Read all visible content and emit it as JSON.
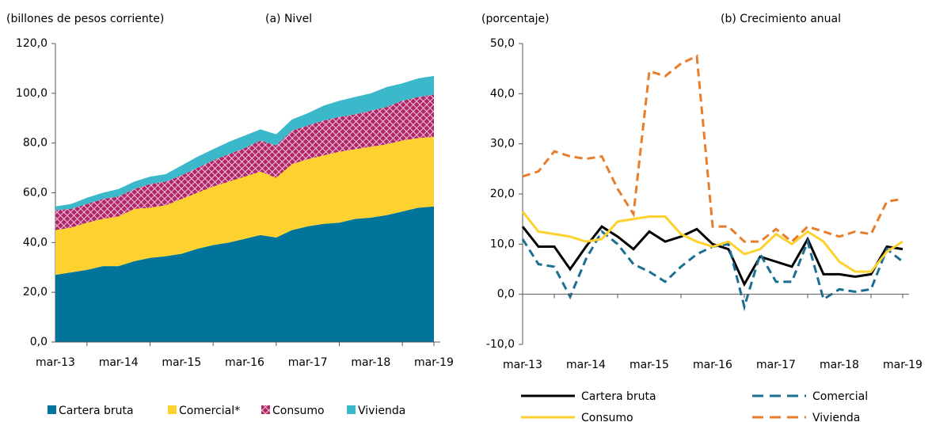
{
  "chart_data": [
    {
      "type": "stacked_area",
      "title": "(a) Nivel",
      "y_label": "(billones de pesos corriente)",
      "categories": [
        "mar-13",
        null,
        null,
        null,
        "mar-14",
        null,
        null,
        null,
        "mar-15",
        null,
        null,
        null,
        "mar-16",
        null,
        null,
        null,
        "mar-17",
        null,
        null,
        null,
        "mar-18",
        null,
        null,
        null,
        "mar-19"
      ],
      "ylim": [
        0,
        120
      ],
      "yticks": [
        {
          "value": 0,
          "label": "0,0"
        },
        {
          "value": 20,
          "label": "20,0"
        },
        {
          "value": 40,
          "label": "40,0"
        },
        {
          "value": 60,
          "label": "60,0"
        },
        {
          "value": 80,
          "label": "80,0"
        },
        {
          "value": 100,
          "label": "100,0"
        },
        {
          "value": 120,
          "label": "120,0"
        }
      ],
      "series": [
        {
          "name": "Cartera bruta",
          "color": "#00749a",
          "values": [
            27,
            28,
            29,
            30.5,
            30.5,
            32.5,
            33.8,
            34.5,
            35.5,
            37.5,
            39,
            40,
            41.5,
            43,
            42,
            45,
            46.5,
            47.5,
            48,
            49.5,
            50,
            51,
            52.5,
            54,
            54.5
          ]
        },
        {
          "name": "Comercial*",
          "color": "#fdd12f",
          "values": [
            18,
            18,
            19,
            19,
            20,
            21,
            20.2,
            20.5,
            22,
            22.5,
            23.5,
            24.5,
            25,
            25.5,
            24,
            26.5,
            27,
            27.5,
            28.5,
            28,
            28.5,
            28.5,
            28.5,
            28,
            28
          ]
        },
        {
          "name": "Consumo",
          "color": "#b1286a",
          "pattern": "crosshatch",
          "values": [
            8,
            7.5,
            7.5,
            8,
            8,
            8,
            9.5,
            9.5,
            9.5,
            10,
            10.5,
            11,
            11.5,
            12.5,
            13,
            13.5,
            13.5,
            14,
            14,
            14,
            14.5,
            15,
            16,
            16.5,
            17
          ]
        },
        {
          "name": "Vivienda",
          "color": "#3bb8c9",
          "values": [
            1.5,
            2,
            2.5,
            2.5,
            3,
            3,
            3,
            3,
            4,
            4.5,
            4.5,
            5,
            5,
            4.5,
            4.5,
            4.5,
            5,
            6,
            6.5,
            7,
            7,
            8,
            7,
            7.5,
            7.5
          ]
        }
      ]
    },
    {
      "type": "line",
      "title": "(b) Crecimiento anual",
      "y_label": "(porcentaje)",
      "categories": [
        "mar-13",
        null,
        null,
        null,
        "mar-14",
        null,
        null,
        null,
        "mar-15",
        null,
        null,
        null,
        "mar-16",
        null,
        null,
        null,
        "mar-17",
        null,
        null,
        null,
        "mar-18",
        null,
        null,
        null,
        "mar-19"
      ],
      "ylim": [
        -10,
        50
      ],
      "yticks": [
        {
          "value": -10,
          "label": "-10,0"
        },
        {
          "value": 0,
          "label": "0,0"
        },
        {
          "value": 10,
          "label": "10,0"
        },
        {
          "value": 20,
          "label": "20,0"
        },
        {
          "value": 30,
          "label": "30,0"
        },
        {
          "value": 40,
          "label": "40,0"
        },
        {
          "value": 50,
          "label": "50,0"
        }
      ],
      "series": [
        {
          "name": "Cartera bruta",
          "color": "#000000",
          "dashed": false,
          "values": [
            13.5,
            9.5,
            9.5,
            5,
            9.5,
            13.5,
            11.5,
            9,
            12.5,
            10.5,
            11.5,
            13,
            10,
            9,
            2,
            7.5,
            6.5,
            5.5,
            11,
            4,
            4,
            3.5,
            4,
            9.5,
            9
          ]
        },
        {
          "name": "Comercial",
          "color": "#1a6f93",
          "dashed": true,
          "values": [
            11,
            6,
            5.5,
            -0.5,
            7,
            12.5,
            10,
            6,
            4.5,
            2.5,
            5.5,
            8,
            9.5,
            10,
            -2.5,
            8,
            2.5,
            2.5,
            10.5,
            -1,
            1,
            0.5,
            1,
            9,
            6.5
          ]
        },
        {
          "name": "Consumo",
          "color": "#fdd12f",
          "dashed": false,
          "values": [
            16.5,
            12.5,
            12,
            11.5,
            10.5,
            11,
            14.5,
            15,
            15.5,
            15.5,
            12,
            10.5,
            9.5,
            10.5,
            8,
            9,
            12,
            10,
            12.5,
            10.5,
            6.5,
            4.5,
            4.5,
            8.5,
            10.5
          ]
        },
        {
          "name": "Vivienda",
          "color": "#e87d2b",
          "dashed": true,
          "values": [
            23.5,
            24.5,
            28.5,
            27.5,
            27,
            27.5,
            21,
            16,
            44.5,
            43.5,
            46,
            47.5,
            13.5,
            13.5,
            10.5,
            10.5,
            13,
            10.5,
            13.5,
            12.5,
            11.5,
            12.5,
            12,
            18.5,
            19
          ]
        }
      ]
    }
  ]
}
